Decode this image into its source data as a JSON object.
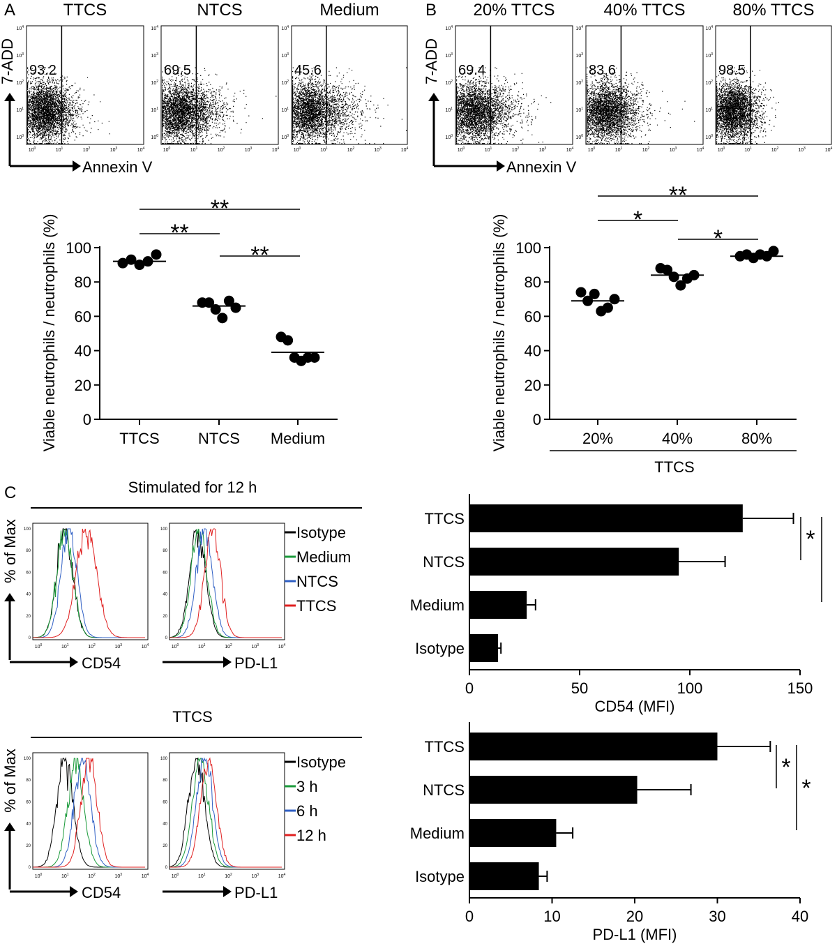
{
  "panels": {
    "a": "A",
    "b": "B",
    "c": "C"
  },
  "flow": {
    "y_label": "7-ADD",
    "x_label": "Annexin V",
    "log_ticks": [
      "10",
      "10",
      "10",
      "10",
      "10"
    ],
    "log_exps": [
      "0",
      "1",
      "2",
      "3",
      "4"
    ],
    "panel_a": [
      {
        "title": "TTCS",
        "value": "93.2",
        "spread": 0.5
      },
      {
        "title": "NTCS",
        "value": "69.5",
        "spread": 0.9
      },
      {
        "title": "Medium",
        "value": "45.6",
        "spread": 1.1
      }
    ],
    "panel_b": [
      {
        "title": "20% TTCS",
        "value": "69.4",
        "spread": 0.9
      },
      {
        "title": "40% TTCS",
        "value": "83.6",
        "spread": 0.75
      },
      {
        "title": "80% TTCS",
        "value": "98.5",
        "spread": 0.35
      }
    ]
  },
  "chart_data": [
    {
      "type": "scatter",
      "panel": "A",
      "ylabel": "Viable neutrophils / neutrophils (%)",
      "ylim": [
        0,
        100
      ],
      "yticks": [
        "0",
        "20",
        "40",
        "60",
        "80",
        "100"
      ],
      "categories": [
        "TTCS",
        "NTCS",
        "Medium"
      ],
      "values": [
        [
          91,
          93,
          90,
          92,
          96
        ],
        [
          68,
          68,
          64,
          59,
          69,
          65
        ],
        [
          48,
          46,
          36,
          34,
          36,
          36
        ]
      ],
      "means": [
        92,
        66,
        39
      ],
      "significance": [
        {
          "from": "TTCS",
          "to": "Medium",
          "label": "**"
        },
        {
          "from": "TTCS",
          "to": "NTCS",
          "label": "**"
        },
        {
          "from": "NTCS",
          "to": "Medium",
          "label": "**"
        }
      ]
    },
    {
      "type": "scatter",
      "panel": "B",
      "ylabel": "Viable neutrophils / neutrophils (%)",
      "ylim": [
        0,
        100
      ],
      "yticks": [
        "0",
        "20",
        "40",
        "60",
        "80",
        "100"
      ],
      "categories": [
        "20%",
        "40%",
        "80%"
      ],
      "group_label": "TTCS",
      "values": [
        [
          74,
          69,
          73,
          63,
          65,
          70
        ],
        [
          88,
          87,
          83,
          78,
          82,
          84
        ],
        [
          95,
          96,
          94,
          96,
          95,
          98
        ]
      ],
      "means": [
        69,
        84,
        95
      ],
      "significance": [
        {
          "from": "20%",
          "to": "80%",
          "label": "**"
        },
        {
          "from": "20%",
          "to": "40%",
          "label": "*"
        },
        {
          "from": "40%",
          "to": "80%",
          "label": "*"
        }
      ]
    },
    {
      "type": "line",
      "panel": "C",
      "title": "Stimulated for 12 h",
      "ylabel": "% of Max",
      "ylim": [
        0,
        100
      ],
      "yticks": [
        "0",
        "20",
        "40",
        "60",
        "80",
        "100"
      ],
      "plots": [
        {
          "xlabel": "CD54",
          "series": [
            {
              "name": "Isotype",
              "peak_log10": 1.0
            },
            {
              "name": "Medium",
              "peak_log10": 1.0
            },
            {
              "name": "NTCS",
              "peak_log10": 1.15
            },
            {
              "name": "TTCS",
              "peak_log10": 1.8
            }
          ]
        },
        {
          "xlabel": "PD-L1",
          "series": [
            {
              "name": "Isotype",
              "peak_log10": 0.85
            },
            {
              "name": "Medium",
              "peak_log10": 0.9
            },
            {
              "name": "NTCS",
              "peak_log10": 1.1
            },
            {
              "name": "TTCS",
              "peak_log10": 1.4
            }
          ]
        }
      ],
      "legend": [
        {
          "name": "Isotype",
          "color": "#000000"
        },
        {
          "name": "Medium",
          "color": "#1a9a3a"
        },
        {
          "name": "NTCS",
          "color": "#2f5fc4"
        },
        {
          "name": "TTCS",
          "color": "#e02020"
        }
      ]
    },
    {
      "type": "line",
      "panel": "C",
      "title": "TTCS",
      "ylabel": "% of Max",
      "ylim": [
        0,
        100
      ],
      "yticks": [
        "0",
        "20",
        "40",
        "60",
        "80",
        "100"
      ],
      "plots": [
        {
          "xlabel": "CD54",
          "series": [
            {
              "name": "Isotype",
              "peak_log10": 1.0
            },
            {
              "name": "3 h",
              "peak_log10": 1.4
            },
            {
              "name": "6 h",
              "peak_log10": 1.65
            },
            {
              "name": "12 h",
              "peak_log10": 1.9
            }
          ]
        },
        {
          "xlabel": "PD-L1",
          "series": [
            {
              "name": "Isotype",
              "peak_log10": 0.8
            },
            {
              "name": "3 h",
              "peak_log10": 0.95
            },
            {
              "name": "6 h",
              "peak_log10": 1.1
            },
            {
              "name": "12 h",
              "peak_log10": 1.25
            }
          ]
        }
      ],
      "legend": [
        {
          "name": "Isotype",
          "color": "#000000"
        },
        {
          "name": "3 h",
          "color": "#1a9a3a"
        },
        {
          "name": "6 h",
          "color": "#2f5fc4"
        },
        {
          "name": "12 h",
          "color": "#e02020"
        }
      ]
    },
    {
      "type": "bar",
      "orientation": "horizontal",
      "panel": "C",
      "xlabel": "CD54 (MFI)",
      "xlim": [
        0,
        150
      ],
      "xticks": [
        "0",
        "50",
        "100",
        "150"
      ],
      "categories": [
        "TTCS",
        "NTCS",
        "Medium",
        "Isotype"
      ],
      "values": [
        124,
        95,
        26,
        13
      ],
      "errors": [
        23,
        21,
        4,
        1.3
      ],
      "significance": [
        {
          "from": "TTCS",
          "to": "NTCS",
          "label": "*"
        },
        {
          "from": "TTCS",
          "to": "Medium",
          "label": "**"
        }
      ]
    },
    {
      "type": "bar",
      "orientation": "horizontal",
      "panel": "C",
      "xlabel": "PD-L1 (MFI)",
      "xlim": [
        0,
        40
      ],
      "xticks": [
        "0",
        "10",
        "20",
        "30",
        "40"
      ],
      "categories": [
        "TTCS",
        "NTCS",
        "Medium",
        "Isotype"
      ],
      "values": [
        30,
        20.3,
        10.5,
        8.4
      ],
      "errors": [
        6.4,
        6.5,
        2,
        1
      ],
      "significance": [
        {
          "from": "TTCS",
          "to": "NTCS",
          "label": "*"
        },
        {
          "from": "TTCS",
          "to": "Medium",
          "label": "*"
        }
      ]
    }
  ]
}
